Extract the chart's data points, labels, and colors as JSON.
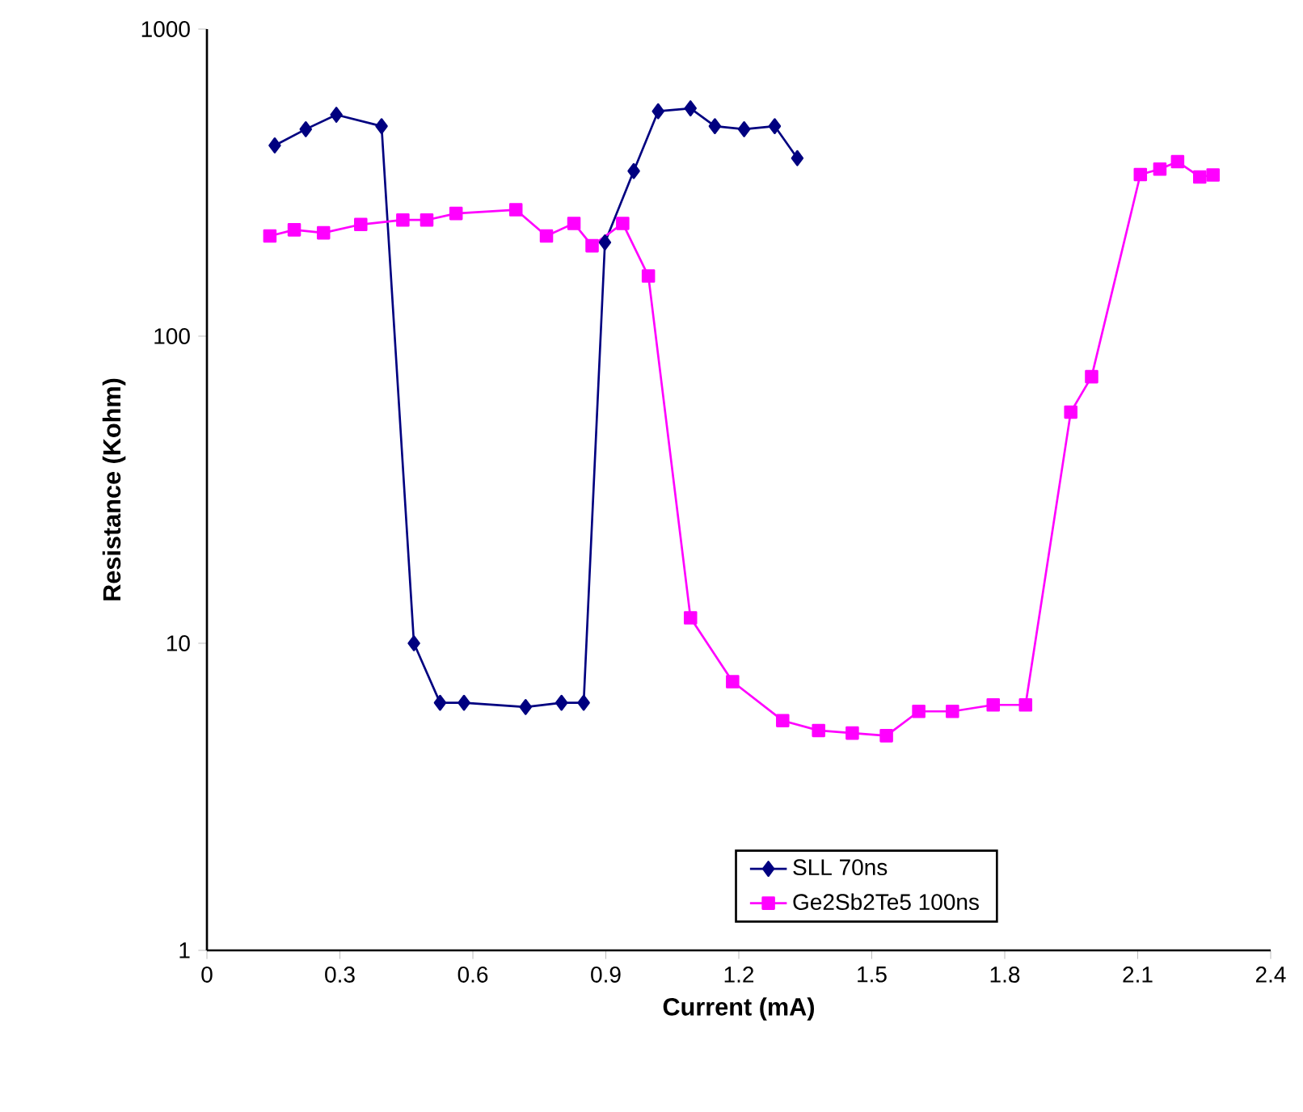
{
  "chart_data": {
    "type": "line",
    "xlabel": "Current (mA)",
    "ylabel": "Resistance (Kohm)",
    "log": "y",
    "xlim": [
      0,
      2.4
    ],
    "ylim": [
      1,
      1000
    ],
    "xticks": [
      0,
      0.3,
      0.6,
      0.9,
      1.2,
      1.5,
      1.8,
      2.1,
      2.4
    ],
    "yticks": [
      1,
      10,
      100,
      1000
    ],
    "legend": "bottom",
    "series": [
      {
        "name": "SLL 70ns",
        "color": "#000080",
        "marker": "diamond",
        "x": [
          0.153,
          0.223,
          0.292,
          0.394,
          0.467,
          0.526,
          0.58,
          0.719,
          0.8,
          0.85,
          0.898,
          0.963,
          1.018,
          1.091,
          1.146,
          1.212,
          1.281,
          1.332
        ],
        "values": [
          418,
          472,
          526,
          483,
          10,
          6.4,
          6.4,
          6.2,
          6.4,
          6.4,
          202,
          345,
          540,
          552,
          483,
          472,
          483,
          380
        ]
      },
      {
        "name": "Ge2Sb2Te5 100ns",
        "color": "#ff00ff",
        "marker": "square",
        "x": [
          0.142,
          0.197,
          0.263,
          0.347,
          0.442,
          0.496,
          0.562,
          0.697,
          0.766,
          0.828,
          0.869,
          0.938,
          0.996,
          1.091,
          1.186,
          1.299,
          1.38,
          1.456,
          1.533,
          1.606,
          1.682,
          1.774,
          1.847,
          1.949,
          1.996,
          2.106,
          2.15,
          2.19,
          2.24,
          2.27
        ],
        "values": [
          212,
          222,
          217,
          231,
          239,
          239,
          251,
          258,
          212,
          233,
          197,
          233,
          157,
          12.1,
          7.5,
          5.6,
          5.2,
          5.1,
          5.0,
          6.0,
          6.0,
          6.3,
          6.3,
          56.6,
          73.8,
          336,
          350,
          370,
          330,
          335
        ]
      }
    ]
  }
}
